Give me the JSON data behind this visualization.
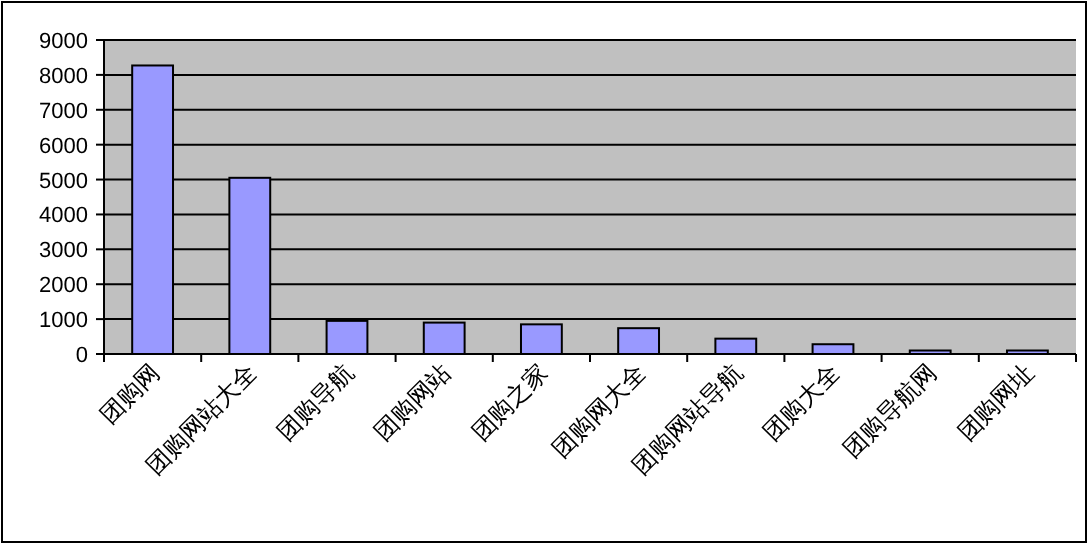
{
  "chart_data": {
    "type": "bar",
    "categories": [
      "团购网",
      "团购网站大全",
      "团购导航",
      "团购网站",
      "团购之家",
      "团购网大全",
      "团购网站导航",
      "团购大全",
      "团购导航网",
      "团购网址"
    ],
    "values": [
      8270,
      5050,
      950,
      900,
      850,
      740,
      440,
      280,
      100,
      100
    ],
    "color": "#9999ff",
    "ylim": [
      0,
      9000
    ],
    "yticks": [
      0,
      1000,
      2000,
      3000,
      4000,
      5000,
      6000,
      7000,
      8000,
      9000
    ],
    "grid": "y"
  }
}
